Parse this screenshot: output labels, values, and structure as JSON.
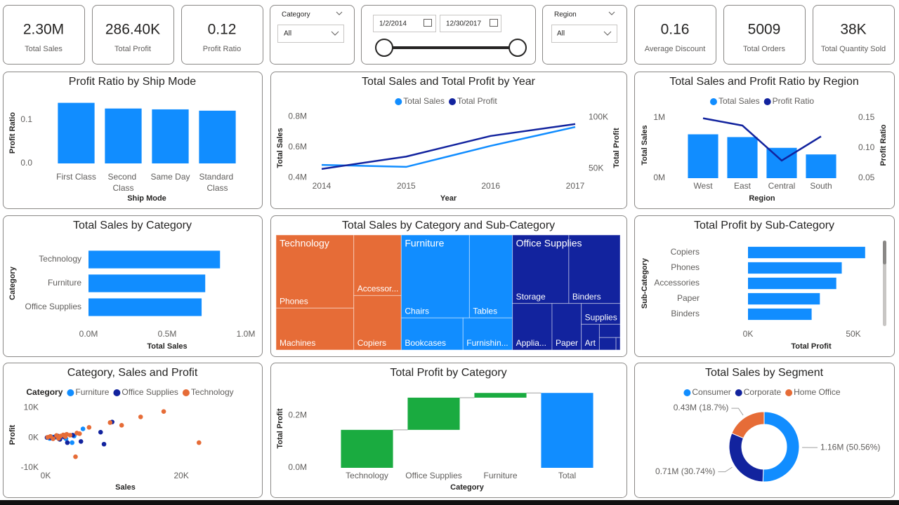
{
  "kpis": [
    {
      "value": "2.30M",
      "label": "Total Sales"
    },
    {
      "value": "286.40K",
      "label": "Total Profit"
    },
    {
      "value": "0.12",
      "label": "Profit Ratio"
    },
    {
      "value": "0.16",
      "label": "Average Discount"
    },
    {
      "value": "5009",
      "label": "Total Orders"
    },
    {
      "value": "38K",
      "label": "Total Quantity Sold"
    }
  ],
  "filters": {
    "category": {
      "label": "Category",
      "value": "All"
    },
    "date": {
      "start": "1/2/2014",
      "end": "12/30/2017"
    },
    "region": {
      "label": "Region",
      "value": "All"
    }
  },
  "chart_data": [
    {
      "type": "bar",
      "title": "Profit Ratio by Ship Mode",
      "xlabel": "Ship Mode",
      "ylabel": "Profit Ratio",
      "categories": [
        "First Class",
        "Second Class",
        "Same Day",
        "Standard Class"
      ],
      "values": [
        0.139,
        0.126,
        0.124,
        0.121
      ],
      "color": "#118dff",
      "ylim": [
        0,
        0.14
      ],
      "yticks": [
        {
          "value": 0,
          "label": "0.0"
        },
        0.1
      ],
      "grid": false
    },
    {
      "type": "line",
      "title": "Total Sales and Total Profit by Year",
      "xlabel": "Year",
      "ylabel": "Total Sales",
      "y2label": "Total Profit",
      "categories": [
        2014,
        2015,
        2016,
        2017
      ],
      "series": [
        {
          "name": "Total Sales",
          "color": "#118dff",
          "values": [
            0.484,
            0.471,
            0.609,
            0.733
          ]
        },
        {
          "name": "Total Profit",
          "color": "#12239e",
          "values": [
            49.5,
            61.6,
            81.8,
            93.4
          ],
          "axis": "y2"
        }
      ],
      "ylim": [
        0.36,
        0.83
      ],
      "yticks": [
        {
          "value": 0.4,
          "label": "0.4M"
        },
        {
          "value": 0.6,
          "label": "0.6M"
        },
        {
          "value": 0.8,
          "label": "0.8M"
        }
      ],
      "y2lim": [
        35,
        105
      ],
      "y2ticks": [
        {
          "value": 50,
          "label": "50K"
        },
        {
          "value": 100,
          "label": "100K"
        }
      ],
      "legend": "top",
      "grid": false
    },
    {
      "type": "combo",
      "title": "Total Sales and Profit Ratio by Region",
      "xlabel": "Region",
      "ylabel": "Total Sales",
      "y2label": "Profit Ratio",
      "categories": [
        "West",
        "East",
        "Central",
        "South"
      ],
      "series": [
        {
          "name": "Total Sales",
          "color": "#118dff",
          "values": [
            0.725,
            0.679,
            0.501,
            0.392
          ]
        },
        {
          "name": "Profit Ratio",
          "color": "#12239e",
          "values": [
            0.149,
            0.137,
            0.079,
            0.119
          ],
          "axis": "y2"
        }
      ],
      "ylim": [
        0,
        1.09
      ],
      "yticks": [
        {
          "value": 0,
          "label": "0M"
        },
        {
          "value": 1,
          "label": "1M"
        }
      ],
      "y2lim": [
        0.05,
        0.159
      ],
      "y2ticks": [
        0.05,
        {
          "value": 0.1,
          "label": "0.10"
        },
        0.15
      ],
      "legend": "top",
      "grid": false
    },
    {
      "type": "bar",
      "horizontal": true,
      "title": "Total Sales by Category",
      "xlabel": "Total Sales",
      "ylabel": "Category",
      "categories": [
        "Technology",
        "Furniture",
        "Office Supplies"
      ],
      "values": [
        0.836,
        0.742,
        0.719
      ],
      "color": "#118dff",
      "xlim": [
        0,
        1
      ],
      "xticks": [
        {
          "value": 0,
          "label": "0.0M"
        },
        {
          "value": 0.5,
          "label": "0.5M"
        },
        {
          "value": 1,
          "label": "1.0M"
        }
      ],
      "grid": false
    },
    {
      "type": "treemap",
      "title": "Total Sales by Category and Sub-Category",
      "groups": [
        {
          "name": "Technology",
          "color": "#e66c37",
          "children": [
            {
              "name": "Phones",
              "value": 0.33
            },
            {
              "name": "Machines",
              "value": 0.189
            },
            {
              "name": "Accessor...",
              "value": 0.167
            },
            {
              "name": "Copiers",
              "value": 0.15
            }
          ]
        },
        {
          "name": "Furniture",
          "color": "#118dff",
          "children": [
            {
              "name": "Chairs",
              "value": 0.328
            },
            {
              "name": "Tables",
              "value": 0.207
            },
            {
              "name": "Bookcases",
              "value": 0.115
            },
            {
              "name": "Furnishin...",
              "value": 0.092
            }
          ]
        },
        {
          "name": "Office Supplies",
          "color": "#12239e",
          "children": [
            {
              "name": "Storage",
              "value": 0.224
            },
            {
              "name": "Binders",
              "value": 0.204
            },
            {
              "name": "Applia...",
              "value": 0.107
            },
            {
              "name": "Paper",
              "value": 0.079
            },
            {
              "name": "Supplies",
              "value": 0.047
            },
            {
              "name": "Art",
              "value": 0.027
            },
            {
              "name": null,
              "value": 0.016
            },
            {
              "name": null,
              "value": 0.012
            },
            {
              "name": null,
              "value": 0.003
            }
          ]
        }
      ]
    },
    {
      "type": "bar",
      "horizontal": true,
      "title": "Total Profit by Sub-Category",
      "xlabel": "Total Profit",
      "ylabel": "Sub-Category",
      "categories": [
        "Copiers",
        "Phones",
        "Accessories",
        "Paper",
        "Binders"
      ],
      "values": [
        55.6,
        44.5,
        41.9,
        34.1,
        30.2
      ],
      "color": "#118dff",
      "xlim": [
        0,
        60
      ],
      "xticks": [
        {
          "value": 0,
          "label": "0K"
        },
        {
          "value": 50,
          "label": "50K"
        }
      ],
      "grid": false
    },
    {
      "type": "scatter",
      "title": "Category, Sales and Profit",
      "xlabel": "Sales",
      "ylabel": "Profit",
      "legend_title": "Category",
      "series": [
        {
          "name": "Furniture",
          "color": "#118dff",
          "x": [
            0.3,
            0.6,
            1.0,
            1.5,
            2.0,
            2.5,
            3.0,
            3.9,
            5.5,
            4.2,
            1.2,
            2.8
          ],
          "values": [
            0.1,
            -0.2,
            0.3,
            0.2,
            -0.4,
            0.5,
            -0.3,
            -1.6,
            3.0,
            0.6,
            0.0,
            0.8
          ]
        },
        {
          "name": "Office Supplies",
          "color": "#12239e",
          "x": [
            0.2,
            0.5,
            0.9,
            1.4,
            2.1,
            2.7,
            3.2,
            5.2,
            8.1,
            8.6,
            9.8,
            4.0,
            1.8
          ],
          "values": [
            0.1,
            0.2,
            -0.1,
            0.4,
            -0.5,
            0.3,
            -1.6,
            -1.2,
            1.9,
            -2.1,
            5.3,
            0.9,
            0.6
          ]
        },
        {
          "name": "Technology",
          "color": "#e66c37",
          "x": [
            0.3,
            0.7,
            1.1,
            1.6,
            2.2,
            2.6,
            3.1,
            3.6,
            4.4,
            5.0,
            6.4,
            9.5,
            11.2,
            14.0,
            17.4,
            22.6,
            1.9,
            2.9,
            4.6
          ],
          "values": [
            0.2,
            0.5,
            -0.3,
            0.8,
            0.6,
            1.0,
            1.2,
            0.9,
            -6.3,
            1.4,
            3.5,
            5.1,
            4.2,
            7.0,
            8.8,
            -1.6,
            -0.2,
            0.4,
            1.6
          ]
        }
      ],
      "xlim": [
        0,
        23.5
      ],
      "xticks": [
        {
          "value": 0,
          "label": "0K"
        },
        {
          "value": 20,
          "label": "20K"
        }
      ],
      "ylim": [
        -10,
        12
      ],
      "yticks": [
        {
          "value": -10,
          "label": "-10K"
        },
        {
          "value": 0,
          "label": "0K"
        },
        {
          "value": 10,
          "label": "10K"
        }
      ],
      "grid": false
    },
    {
      "type": "waterfall",
      "title": "Total Profit by Category",
      "xlabel": "Category",
      "ylabel": "Total Profit",
      "categories": [
        "Technology",
        "Office Supplies",
        "Furniture"
      ],
      "values": [
        0.145,
        0.123,
        0.018
      ],
      "total": {
        "label": "Total",
        "value": 0.286
      },
      "colors": {
        "increase": "#1aab40",
        "total": "#118dff"
      },
      "ylim": [
        0,
        0.3
      ],
      "yticks": [
        {
          "value": 0,
          "label": "0.0M"
        },
        {
          "value": 0.2,
          "label": "0.2M"
        }
      ],
      "grid": false
    },
    {
      "type": "pie",
      "donut": true,
      "title": "Total Sales by Segment",
      "categories": [
        "Consumer",
        "Corporate",
        "Home Office"
      ],
      "values": [
        50.56,
        30.74,
        18.7
      ],
      "value_labels": [
        "1.16M (50.56%)",
        "0.71M (30.74%)",
        "0.43M (18.7%)"
      ],
      "colors": [
        "#118dff",
        "#12239e",
        "#e66c37"
      ],
      "legend": "top"
    }
  ]
}
